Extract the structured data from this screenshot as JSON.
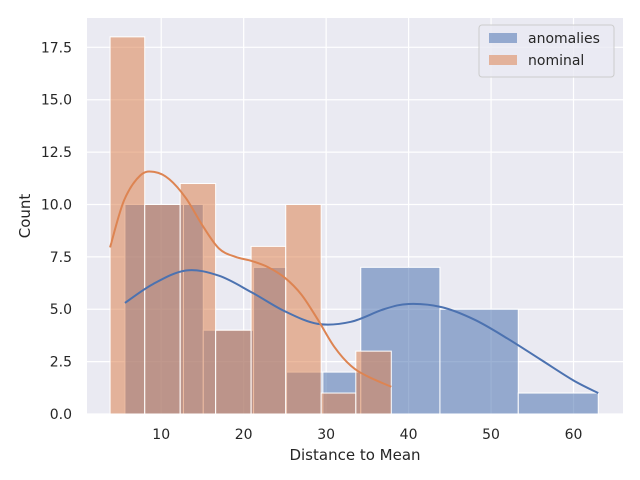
{
  "chart_data": {
    "type": "histogram",
    "title": "",
    "xlabel": "Distance to Mean",
    "ylabel": "Count",
    "xlim": [
      1.0,
      66.0
    ],
    "ylim": [
      0,
      18.9
    ],
    "xticks": [
      10,
      20,
      30,
      40,
      50,
      60
    ],
    "yticks": [
      0.0,
      2.5,
      5.0,
      7.5,
      10.0,
      12.5,
      15.0,
      17.5
    ],
    "ytick_labels": [
      "0.0",
      "2.5",
      "5.0",
      "7.5",
      "10.0",
      "12.5",
      "15.0",
      "17.5"
    ],
    "grid": true,
    "legend_position": "top-right",
    "series": [
      {
        "name": "anomalies",
        "color": "#4c72b0",
        "bin_edges": [
          5.6,
          12.7,
          15.1,
          21.2,
          25.2,
          29.6,
          34.2,
          43.8,
          53.3,
          63.0
        ],
        "counts": [
          10,
          10,
          4,
          7,
          2,
          2,
          7,
          5,
          1
        ],
        "kde": [
          [
            5.6,
            5.3
          ],
          [
            9,
            6.2
          ],
          [
            13,
            6.85
          ],
          [
            17,
            6.6
          ],
          [
            21,
            5.8
          ],
          [
            25,
            4.9
          ],
          [
            29,
            4.3
          ],
          [
            33,
            4.4
          ],
          [
            37,
            5.0
          ],
          [
            40,
            5.25
          ],
          [
            44,
            5.1
          ],
          [
            48,
            4.5
          ],
          [
            52,
            3.6
          ],
          [
            56,
            2.6
          ],
          [
            60,
            1.6
          ],
          [
            63,
            1.0
          ]
        ]
      },
      {
        "name": "nominal",
        "color": "#dd8452",
        "bin_edges": [
          3.8,
          8.0,
          12.3,
          16.6,
          20.9,
          25.1,
          29.4,
          33.6,
          37.9
        ],
        "counts": [
          18,
          10,
          11,
          4,
          8,
          10,
          1,
          3
        ],
        "kde": [
          [
            3.8,
            7.95
          ],
          [
            5.5,
            10.2
          ],
          [
            7.5,
            11.4
          ],
          [
            9.2,
            11.55
          ],
          [
            11,
            11.2
          ],
          [
            13,
            10.3
          ],
          [
            15,
            9.0
          ],
          [
            17,
            7.9
          ],
          [
            19,
            7.5
          ],
          [
            21,
            7.3
          ],
          [
            23,
            7.0
          ],
          [
            25,
            6.5
          ],
          [
            27,
            5.7
          ],
          [
            29,
            4.5
          ],
          [
            31,
            3.2
          ],
          [
            33,
            2.3
          ],
          [
            35,
            1.8
          ],
          [
            37.9,
            1.3
          ]
        ]
      }
    ]
  }
}
